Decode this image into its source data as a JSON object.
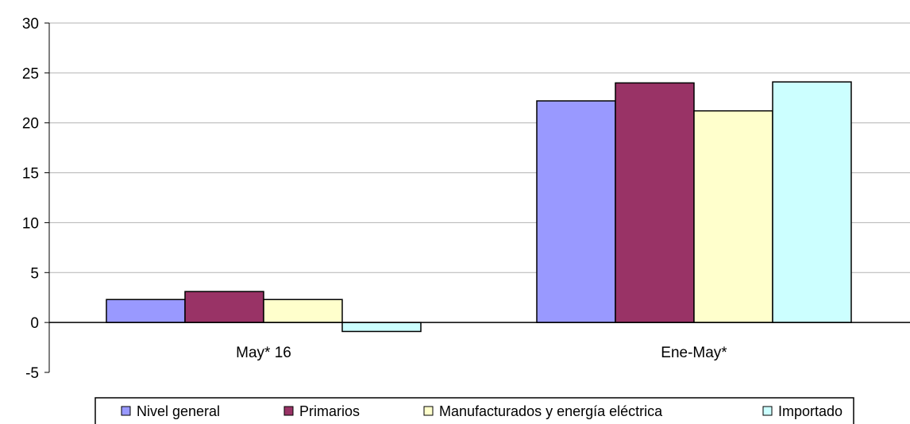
{
  "chart_data": {
    "type": "bar",
    "categories": [
      "May* 16",
      "Ene-May*"
    ],
    "series": [
      {
        "name": "Nivel general",
        "color": "#9999ff",
        "values": [
          2.3,
          22.2
        ]
      },
      {
        "name": "Primarios",
        "color": "#993366",
        "values": [
          3.1,
          24.0
        ]
      },
      {
        "name": "Manufacturados y energía eléctrica",
        "color": "#ffffcc",
        "values": [
          2.3,
          21.2
        ]
      },
      {
        "name": "Importado",
        "color": "#ccffff",
        "values": [
          -0.9,
          24.1
        ]
      }
    ],
    "ylim": [
      -5,
      30
    ],
    "yticks": [
      30,
      25,
      20,
      15,
      10,
      5,
      0,
      -5
    ],
    "grid": true,
    "legend_position": "bottom",
    "title": "",
    "xlabel": "",
    "ylabel": ""
  }
}
